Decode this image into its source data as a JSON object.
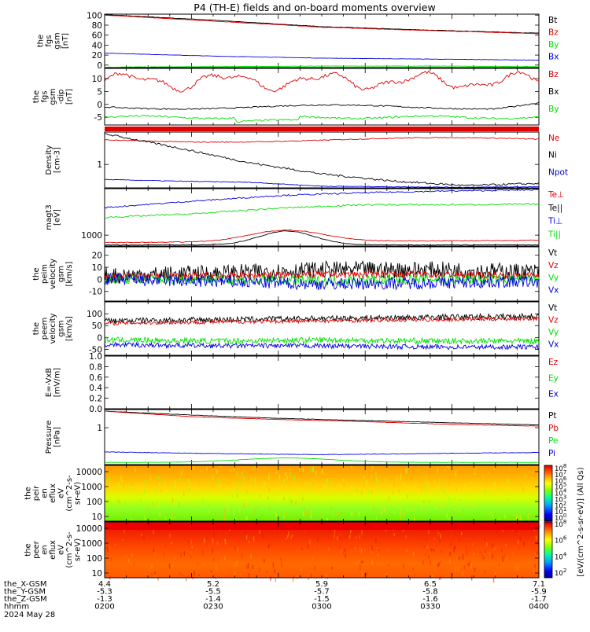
{
  "title": "P4 (TH-E) fields and on-board moments overview",
  "colors": {
    "black": "#000000",
    "red": "#e00000",
    "green": "#00e000",
    "blue": "#0000e0",
    "frame": "#000000"
  },
  "panels": [
    {
      "id": "fgs_gsm_nt",
      "ylabel": [
        "the",
        "fgs",
        "gsm",
        "[nT]"
      ],
      "ylim": [
        -5,
        102
      ],
      "yticks": [
        0,
        20,
        40,
        60,
        80,
        100
      ],
      "legend": [
        {
          "label": "Bt",
          "color": "black"
        },
        {
          "label": "Bz",
          "color": "red"
        },
        {
          "label": "By",
          "color": "green"
        },
        {
          "label": "Bx",
          "color": "blue"
        }
      ]
    },
    {
      "id": "fgs_gsm_dip",
      "ylabel": [
        "the",
        "fgs",
        "gsm",
        "-dip",
        "[nT]"
      ],
      "ylim": [
        -8,
        14
      ],
      "yticks": [
        -5,
        0,
        5,
        10
      ],
      "legend": [
        {
          "label": "Bz",
          "color": "red"
        },
        {
          "label": "Bx",
          "color": "black"
        },
        {
          "label": "By",
          "color": "green"
        }
      ]
    },
    {
      "id": "density",
      "ylabel": [
        "Density",
        "[cm-3]"
      ],
      "yticks": [
        1
      ],
      "legend": [
        {
          "label": "Ne",
          "color": "red"
        },
        {
          "label": "Ni",
          "color": "black"
        },
        {
          "label": "Npot",
          "color": "blue"
        }
      ]
    },
    {
      "id": "temperature",
      "ylabel": [
        "magt3",
        "[eV]"
      ],
      "yticks": [
        1000
      ],
      "legend": [
        {
          "label": "Te⊥",
          "color": "red"
        },
        {
          "label": "Te||",
          "color": "black"
        },
        {
          "label": "Ti⊥",
          "color": "blue"
        },
        {
          "label": "Ti||",
          "color": "green"
        }
      ]
    },
    {
      "id": "peim_velocity",
      "ylabel": [
        "the",
        "peim",
        "velocity",
        "gsm",
        "[km/s]"
      ],
      "ylim": [
        -18,
        27
      ],
      "yticks": [
        -10,
        0,
        10,
        20
      ],
      "legend": [
        {
          "label": "Vt",
          "color": "black"
        },
        {
          "label": "Vz",
          "color": "red"
        },
        {
          "label": "Vy",
          "color": "green"
        },
        {
          "label": "Vx",
          "color": "blue"
        }
      ]
    },
    {
      "id": "peem_velocity",
      "ylabel": [
        "the",
        "peem",
        "velocity",
        "gsm",
        "[km/s]"
      ],
      "ylim": [
        -75,
        150
      ],
      "yticks": [
        -50,
        0,
        50,
        100
      ],
      "legend": [
        {
          "label": "Vt",
          "color": "black"
        },
        {
          "label": "Vz",
          "color": "red"
        },
        {
          "label": "Vy",
          "color": "green"
        },
        {
          "label": "Vx",
          "color": "blue"
        }
      ]
    },
    {
      "id": "efield",
      "ylabel": [
        "E=-VxB",
        "[mV/m]"
      ],
      "ylim": [
        0,
        1.0
      ],
      "yticks": [
        "0.0",
        "0.2",
        "0.4",
        "0.6",
        "0.8",
        "1.0"
      ],
      "legend": [
        {
          "label": "Ez",
          "color": "red"
        },
        {
          "label": "Ey",
          "color": "green"
        },
        {
          "label": "Ex",
          "color": "blue"
        }
      ]
    },
    {
      "id": "pressure",
      "ylabel": [
        "Pressure",
        "[nPa]"
      ],
      "yticks": [
        1
      ],
      "legend": [
        {
          "label": "Pt",
          "color": "black"
        },
        {
          "label": "Pb",
          "color": "red"
        },
        {
          "label": "Pe",
          "color": "green"
        },
        {
          "label": "Pi",
          "color": "blue"
        }
      ]
    },
    {
      "id": "peir_en_eflux",
      "ylabel": [
        "the",
        "peir",
        "en",
        "eflux",
        "eV",
        "(cm^2-s-",
        "sr-eV)"
      ],
      "yticks": [
        10,
        100,
        1000,
        10000
      ]
    },
    {
      "id": "peer_en_eflux",
      "ylabel": [
        "the",
        "peer",
        "en",
        "eflux",
        "eV",
        "(cm^2-s-",
        "sr-eV)"
      ],
      "yticks": [
        10,
        100,
        1000,
        10000
      ]
    }
  ],
  "colorbar": {
    "ticks_upper": [
      "10^8",
      "10^7",
      "10^6",
      "10^5",
      "10^4",
      "10^3",
      "10^2",
      "10^1",
      "10^0"
    ],
    "ticks_lower": [
      "10^8",
      "10^6",
      "10^4",
      "10^2"
    ],
    "label": "[eV/(cm^2-s-sr-eV)] (All Qs)"
  },
  "xaxis": {
    "rows": [
      {
        "label": "the_X-GSM",
        "values": [
          "4.4",
          "5.2",
          "5.9",
          "6.5",
          "7.1"
        ]
      },
      {
        "label": "the_Y-GSM",
        "values": [
          "-5.3",
          "-5.5",
          "-5.7",
          "-5.8",
          "-5.9"
        ]
      },
      {
        "label": "the_Z-GSM",
        "values": [
          "-1.3",
          "-1.4",
          "-1.5",
          "-1.6",
          "-1.7"
        ]
      },
      {
        "label": "hhmm",
        "values": [
          "0200",
          "0230",
          "0300",
          "0330",
          "0400"
        ]
      }
    ],
    "date": "2024 May 28"
  },
  "chart_data": {
    "type": "line",
    "title": "P4 (TH-E) fields and on-board moments overview",
    "x": [
      "0200",
      "0230",
      "0300",
      "0330",
      "0400"
    ],
    "series": [
      {
        "name": "Bt",
        "panel": "fgs_gsm_nt",
        "values": [
          101,
          90,
          77,
          70,
          64
        ]
      },
      {
        "name": "Bz",
        "panel": "fgs_gsm_nt",
        "values": [
          100,
          88,
          76,
          69,
          63
        ]
      },
      {
        "name": "By",
        "panel": "fgs_gsm_nt",
        "values": [
          -4,
          -3,
          -2,
          -2,
          -3
        ]
      },
      {
        "name": "Bx",
        "panel": "fgs_gsm_nt",
        "values": [
          24,
          18,
          14,
          12,
          10
        ]
      },
      {
        "name": "Bz",
        "panel": "fgs_gsm_dip",
        "values": [
          10,
          9,
          11,
          8,
          7
        ]
      },
      {
        "name": "Bx",
        "panel": "fgs_gsm_dip",
        "values": [
          -1,
          -1,
          -2,
          -1,
          1
        ]
      },
      {
        "name": "By",
        "panel": "fgs_gsm_dip",
        "values": [
          -5,
          -4.5,
          -6,
          -5,
          -5
        ]
      },
      {
        "name": "Vt",
        "panel": "peim_velocity",
        "values": [
          3,
          5,
          8,
          8,
          6
        ]
      },
      {
        "name": "Vt",
        "panel": "peem_velocity",
        "values": [
          70,
          75,
          80,
          85,
          90
        ]
      },
      {
        "name": "Vz",
        "panel": "peem_velocity",
        "values": [
          60,
          65,
          70,
          75,
          80
        ]
      },
      {
        "name": "Vy",
        "panel": "peem_velocity",
        "values": [
          -10,
          -15,
          -10,
          -15,
          -15
        ]
      },
      {
        "name": "Vx",
        "panel": "peem_velocity",
        "values": [
          -30,
          -35,
          -35,
          -40,
          -40
        ]
      }
    ]
  }
}
